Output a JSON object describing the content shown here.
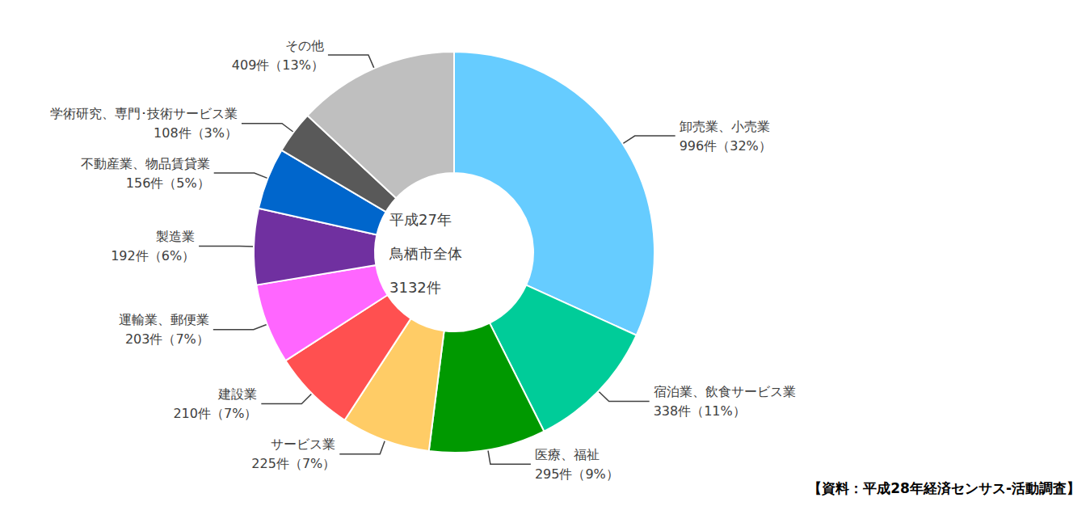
{
  "chart_data": {
    "type": "pie",
    "center_text": [
      "平成27年",
      "鳥栖市全体",
      "3132件"
    ],
    "source": "【資料：平成28年経済センサス-活動調査】",
    "categories": [
      "卸売業、小売業",
      "宿泊業、飲食サービス業",
      "医療、福祉",
      "サービス業",
      "建設業",
      "運輸業、郵便業",
      "製造業",
      "不動産業、物品賃貸業",
      "学術研究、専門･技術サービス業",
      "その他"
    ],
    "values": [
      996,
      338,
      295,
      225,
      210,
      203,
      192,
      156,
      108,
      409
    ],
    "value_labels": [
      "996件（32%）",
      "338件（11%）",
      "295件（9%）",
      "225件（7%）",
      "210件（7%）",
      "203件（7%）",
      "192件（6%）",
      "156件（5%）",
      "108件（3%）",
      "409件（13%）"
    ],
    "colors": [
      "#66ccff",
      "#00cc99",
      "#009900",
      "#ffcc66",
      "#ff5050",
      "#ff66ff",
      "#7030a0",
      "#0066cc",
      "#595959",
      "#bfbfbf"
    ],
    "data_labels": true
  }
}
